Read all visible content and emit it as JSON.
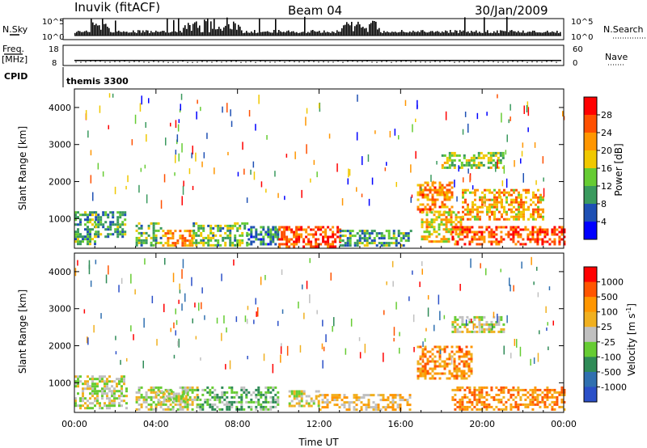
{
  "header": {
    "station": "Inuvik (fitACF)",
    "beam": "Beam 04",
    "date": "30/Jan/2009"
  },
  "nsky_panel": {
    "left_label": "N.Sky",
    "right_label": "N.Search",
    "left_ticks": [
      "10^5",
      "10^0"
    ],
    "right_ticks": [
      "10^5",
      "10^0"
    ]
  },
  "freq_panel": {
    "left_label": "Freq.",
    "left_unit": "[MHz]",
    "right_label": "Nave",
    "left_ticks": [
      "18",
      "8"
    ],
    "right_ticks": [
      "60",
      "0"
    ],
    "freq_mhz": 10.5
  },
  "cpid": {
    "label": "CPID",
    "value": "themis 3300"
  },
  "colors": {
    "power_scale": [
      "#0000ff",
      "#1e50b4",
      "#3a9a5e",
      "#66cc33",
      "#f0c800",
      "#ff9600",
      "#ff5000",
      "#ff0000"
    ],
    "velocity_scale": [
      "#2b50c8",
      "#3070b0",
      "#2f8b57",
      "#66cc33",
      "#c0c0c0",
      "#f0b020",
      "#ff9600",
      "#ff5500",
      "#ff0000"
    ]
  },
  "chart_data": [
    {
      "type": "heatmap",
      "name": "power",
      "ylabel": "Slant Range [km]",
      "ylim": [
        200,
        4500
      ],
      "xlim": [
        0,
        24
      ],
      "ytick_values": [
        1000,
        2000,
        3000,
        4000
      ],
      "ytick_labels": [
        "1000",
        "2000",
        "3000",
        "4000"
      ],
      "colorbar_label": "Power [dB]",
      "colorbar_tick_labels": [
        "4",
        "8",
        "12",
        "16",
        "20",
        "24",
        "28"
      ],
      "colorbar_range": [
        0,
        30
      ],
      "features": [
        {
          "t": [
            0.0,
            1.0
          ],
          "r": [
            300,
            1200
          ],
          "level": 10
        },
        {
          "t": [
            1.0,
            2.5
          ],
          "r": [
            500,
            1200
          ],
          "level": 10
        },
        {
          "t": [
            3.0,
            4.3
          ],
          "r": [
            300,
            900
          ],
          "level": 12
        },
        {
          "t": [
            4.3,
            5.8
          ],
          "r": [
            300,
            700
          ],
          "level": 22
        },
        {
          "t": [
            5.8,
            8.5
          ],
          "r": [
            300,
            900
          ],
          "level": 12
        },
        {
          "t": [
            8.5,
            10.0
          ],
          "r": [
            300,
            800
          ],
          "level": 8
        },
        {
          "t": [
            10.0,
            13.0
          ],
          "r": [
            250,
            800
          ],
          "level": 26
        },
        {
          "t": [
            13.0,
            16.5
          ],
          "r": [
            300,
            700
          ],
          "level": 10
        },
        {
          "t": [
            16.8,
            18.5
          ],
          "r": [
            1200,
            2000
          ],
          "level": 22
        },
        {
          "t": [
            17.0,
            19.0
          ],
          "r": [
            400,
            1200
          ],
          "level": 18
        },
        {
          "t": [
            18.5,
            24.0
          ],
          "r": [
            300,
            800
          ],
          "level": 26
        },
        {
          "t": [
            19.0,
            23.0
          ],
          "r": [
            1000,
            1800
          ],
          "level": 20
        },
        {
          "t": [
            18.0,
            21.0
          ],
          "r": [
            2400,
            2800
          ],
          "level": 14
        }
      ]
    },
    {
      "type": "heatmap",
      "name": "velocity",
      "ylabel": "Slant Range [km]",
      "ylim": [
        200,
        4500
      ],
      "xlim": [
        0,
        24
      ],
      "ytick_values": [
        1000,
        2000,
        3000,
        4000
      ],
      "ytick_labels": [
        "1000",
        "2000",
        "3000",
        "4000"
      ],
      "xtick_values": [
        0,
        4,
        8,
        12,
        16,
        20,
        24
      ],
      "xtick_labels": [
        "00:00",
        "04:00",
        "08:00",
        "12:00",
        "16:00",
        "20:00",
        "00:00"
      ],
      "xlabel": "Time UT",
      "colorbar_label": "Velocity [m s",
      "colorbar_label_sup": "-1",
      "colorbar_label_end": "]",
      "colorbar_tick_labels": [
        "1000",
        "500",
        "100",
        "25",
        "-25",
        "-100",
        "-500",
        "-1000"
      ],
      "features": [
        {
          "t": [
            0.0,
            2.5
          ],
          "r": [
            300,
            1200
          ],
          "level": 4
        },
        {
          "t": [
            3.0,
            6.0
          ],
          "r": [
            300,
            900
          ],
          "level": 4
        },
        {
          "t": [
            4.0,
            5.5
          ],
          "r": [
            500,
            800
          ],
          "level": 4
        },
        {
          "t": [
            6.0,
            10.0
          ],
          "r": [
            300,
            900
          ],
          "level": 3
        },
        {
          "t": [
            10.5,
            12.0
          ],
          "r": [
            400,
            800
          ],
          "level": 4
        },
        {
          "t": [
            12.0,
            16.5
          ],
          "r": [
            250,
            700
          ],
          "level": 5
        },
        {
          "t": [
            16.8,
            19.5
          ],
          "r": [
            1100,
            2000
          ],
          "level": 6
        },
        {
          "t": [
            18.5,
            24.0
          ],
          "r": [
            250,
            900
          ],
          "level": 6
        },
        {
          "t": [
            18.5,
            21.0
          ],
          "r": [
            2400,
            2800
          ],
          "level": 4
        }
      ]
    }
  ]
}
